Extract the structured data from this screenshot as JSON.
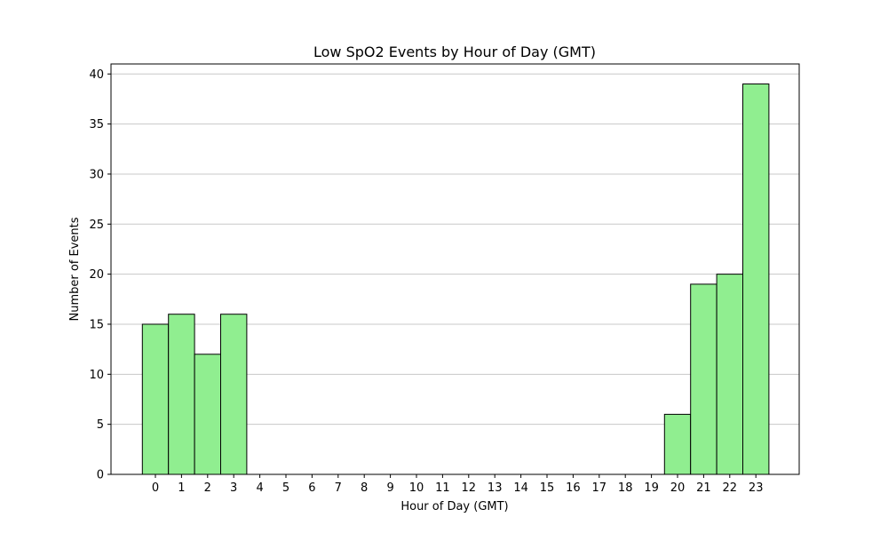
{
  "chart_data": {
    "type": "bar",
    "title": "Low SpO2 Events by Hour of Day (GMT)",
    "xlabel": "Hour of Day (GMT)",
    "ylabel": "Number of Events",
    "categories": [
      "0",
      "1",
      "2",
      "3",
      "4",
      "5",
      "6",
      "7",
      "8",
      "9",
      "10",
      "11",
      "12",
      "13",
      "14",
      "15",
      "16",
      "17",
      "18",
      "19",
      "20",
      "21",
      "22",
      "23"
    ],
    "values": [
      15,
      16,
      12,
      16,
      0,
      0,
      0,
      0,
      0,
      0,
      0,
      0,
      0,
      0,
      0,
      0,
      0,
      0,
      0,
      0,
      6,
      19,
      20,
      39
    ],
    "ylim": [
      0,
      41
    ],
    "yticks": [
      0,
      5,
      10,
      15,
      20,
      25,
      30,
      35,
      40
    ],
    "grid": "y",
    "bar_color": "#90ee90",
    "edge_color": "#000000",
    "grid_color": "#c8c8c8"
  }
}
